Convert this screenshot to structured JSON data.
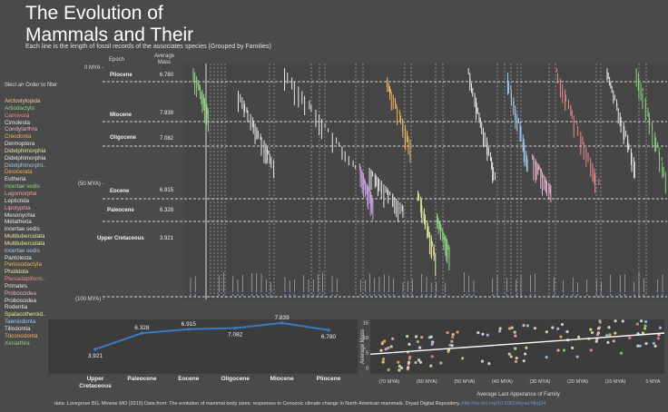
{
  "title_line1": "The Evolution of",
  "title_line2": "Mammals and Their",
  "subtitle": "Each line is the length of fossil records of the associates species  (Grouped by Families)",
  "filter": {
    "title": "Slect an Order to filter",
    "orders": [
      {
        "label": "Arctostylopida",
        "color": "#e8d19a"
      },
      {
        "label": "Artiodactyla",
        "color": "#8fcf82"
      },
      {
        "label": "Carnivora",
        "color": "#f08a8a"
      },
      {
        "label": "Cimolesta",
        "color": "#e8e8e8"
      },
      {
        "label": "Condylarthra",
        "color": "#e8b0c8"
      },
      {
        "label": "Creodonta",
        "color": "#f2b35b"
      },
      {
        "label": "Dermoptera",
        "color": "#e8e8e8"
      },
      {
        "label": "Didelphimorphia",
        "color": "#e8e8a0"
      },
      {
        "label": "Didelphimorphia",
        "color": "#e8e8e8"
      },
      {
        "label": "Didelphimorphi..",
        "color": "#a0c8f0"
      },
      {
        "label": "Dinocerata",
        "color": "#f2b35b"
      },
      {
        "label": "Eutheria",
        "color": "#e8e8e8"
      },
      {
        "label": "incertae sedis",
        "color": "#8fcf82"
      },
      {
        "label": "Lagomorpha",
        "color": "#f2a0a0"
      },
      {
        "label": "Leptictida",
        "color": "#e8e8e8"
      },
      {
        "label": "Lipotyphla",
        "color": "#f0a0b0"
      },
      {
        "label": "Mesonychia",
        "color": "#e8e8e8"
      },
      {
        "label": "Metatheria",
        "color": "#e8e8e8"
      },
      {
        "label": "incertae sedis",
        "color": "#e8e8e8"
      },
      {
        "label": "Multituberculata",
        "color": "#e8e8a0"
      },
      {
        "label": "Multituberculata",
        "color": "#e8e8a0"
      },
      {
        "label": "incertae sedis",
        "color": "#a0c8f0"
      },
      {
        "label": "Pantolesta",
        "color": "#e8e8e8"
      },
      {
        "label": "Perissodactyla",
        "color": "#f2b35b"
      },
      {
        "label": "Pholidota",
        "color": "#e8e8a0"
      },
      {
        "label": "Plesiadapiform..",
        "color": "#f08a8a"
      },
      {
        "label": "Primates",
        "color": "#e8e8e8"
      },
      {
        "label": "Proboscidea",
        "color": "#e8b0c8"
      },
      {
        "label": "Proboscidea",
        "color": "#e8e8e8"
      },
      {
        "label": "Rodentia",
        "color": "#e8e8e8"
      },
      {
        "label": "Spalacotheroid..",
        "color": "#e8e8a0"
      },
      {
        "label": "Taeniodonta",
        "color": "#a0c8f0"
      },
      {
        "label": "Tillodontia",
        "color": "#e8e8e8"
      },
      {
        "label": "Triconodonta",
        "color": "#f2b35b"
      },
      {
        "label": "Xenarthra",
        "color": "#8fcf82"
      }
    ]
  },
  "main": {
    "epoch_header": "Epoch",
    "mass_header": "Average Mass",
    "axis_labels": [
      "0 MYA -",
      "(50 MYA) -",
      "(100 MYA) -"
    ],
    "epochs": [
      {
        "name": "Pliocene",
        "mass": "6.780"
      },
      {
        "name": "Miocene",
        "mass": "7.839"
      },
      {
        "name": "Oligocene",
        "mass": "7.082"
      },
      {
        "name": "Eocene",
        "mass": "6.915"
      },
      {
        "name": "Paleocene",
        "mass": "6.328"
      },
      {
        "name": "Upper Cretaceous",
        "mass": "3.921"
      }
    ]
  },
  "chart_data": [
    {
      "type": "line",
      "categories": [
        "Upper Cretaceous",
        "Paleocene",
        "Eocene",
        "Oligocene",
        "Miocene",
        "Pliocene"
      ],
      "values": [
        3.921,
        6.328,
        6.915,
        7.082,
        7.839,
        6.78
      ],
      "value_labels": [
        "3.921",
        "6.328",
        "6.915",
        "7.082",
        "7.839",
        "6.780"
      ],
      "color": "#3a78c0"
    },
    {
      "type": "scatter",
      "xlabel": "Average Last Apperance of Family",
      "ylabel": "Average Mass",
      "x_ticks": [
        "(70 MYA)",
        "(60 MYA)",
        "(50 MYA)",
        "(40 MYA)",
        "(30 MYA)",
        "(20 MYA)",
        "(10 MYA)",
        "0 MYA"
      ],
      "y_ticks": [
        "15",
        "10",
        "5",
        "0"
      ],
      "xlim": [
        -75,
        3
      ],
      "ylim": [
        -2,
        16
      ],
      "trend": {
        "x": [
          -75,
          3
        ],
        "y": [
          4.5,
          11.5
        ],
        "color": "#ffffff"
      }
    }
  ],
  "footer": {
    "text": "data: Lovegrove BG, Mowoe MO (2013) Data from: The evolution of mammal body sizes: responses to Cenozoic climate change in North American mammals. Dryad Digital Repository. ",
    "link": "http://dx.doi.org/10.5061/dryad.f4kg34"
  }
}
